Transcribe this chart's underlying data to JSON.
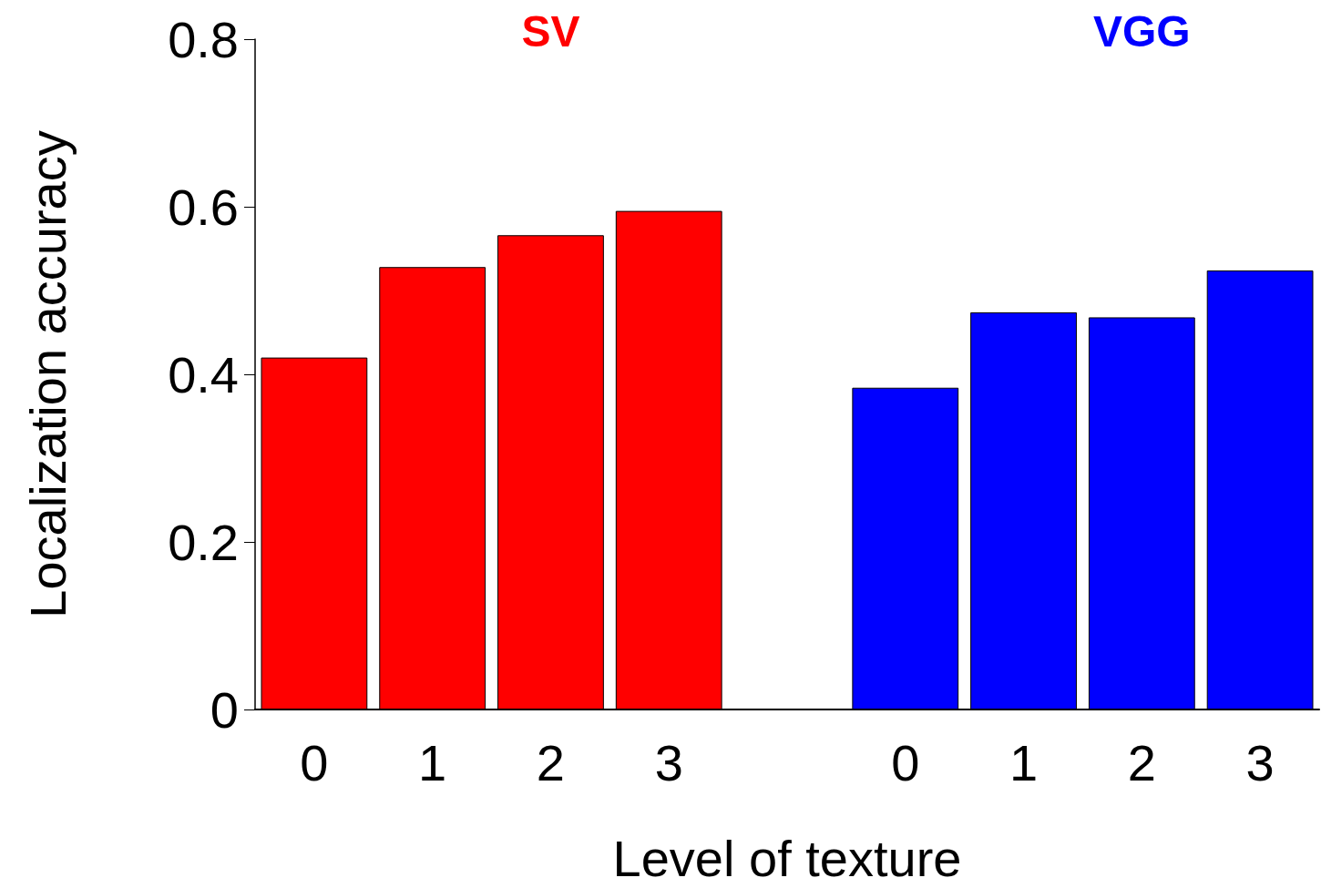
{
  "chart_data": {
    "type": "bar",
    "xlabel": "Level of texture",
    "ylabel": "Localization accuracy",
    "categories": [
      "0",
      "1",
      "2",
      "3",
      null,
      "0",
      "1",
      "2",
      "3"
    ],
    "series": [
      {
        "name": "SV",
        "color": "#ff0000",
        "values": [
          0.42,
          0.528,
          0.566,
          0.595,
          null,
          null,
          null,
          null,
          null
        ]
      },
      {
        "name": "VGG",
        "color": "#0000ff",
        "values": [
          null,
          null,
          null,
          null,
          null,
          0.384,
          0.474,
          0.468,
          0.524
        ]
      }
    ],
    "ylim": [
      0,
      0.8
    ],
    "yticks": [
      0,
      0.2,
      0.4,
      0.6,
      0.8
    ],
    "grid": false,
    "legend": false
  }
}
